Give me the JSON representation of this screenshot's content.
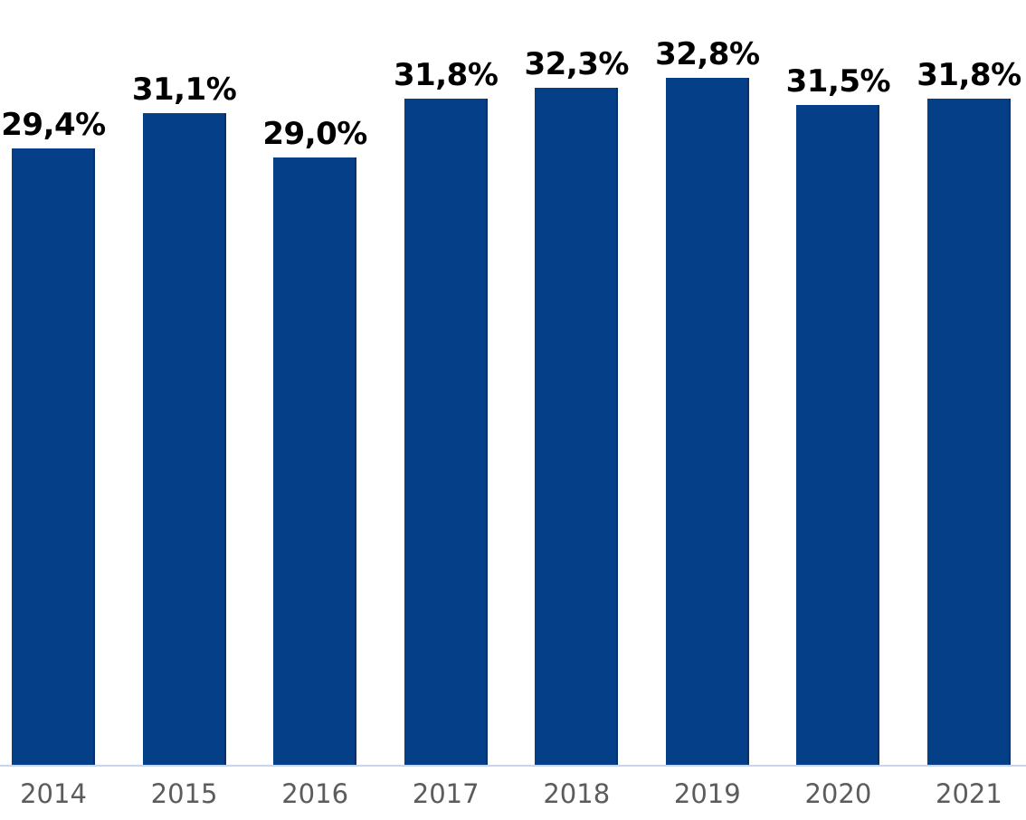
{
  "chart_data": {
    "type": "bar",
    "title": "",
    "categories": [
      "2014",
      "2015",
      "2016",
      "2017",
      "2018",
      "2019",
      "2020",
      "2021"
    ],
    "values": [
      29.4,
      31.1,
      29.0,
      31.8,
      32.3,
      32.8,
      31.5,
      31.8
    ],
    "value_labels": [
      "29,4%",
      "31,1%",
      "29,0%",
      "31,8%",
      "32,3%",
      "32,8%",
      "31,5%",
      "31,8%"
    ],
    "xlabel": "",
    "ylabel": "",
    "ylim": [
      0,
      36.5
    ],
    "grid": false,
    "legend": false,
    "bar_color": "#043f87",
    "axis_line_color": "#c9d5ef",
    "value_label_color": "#000000",
    "category_label_color": "#5b5c5e"
  }
}
